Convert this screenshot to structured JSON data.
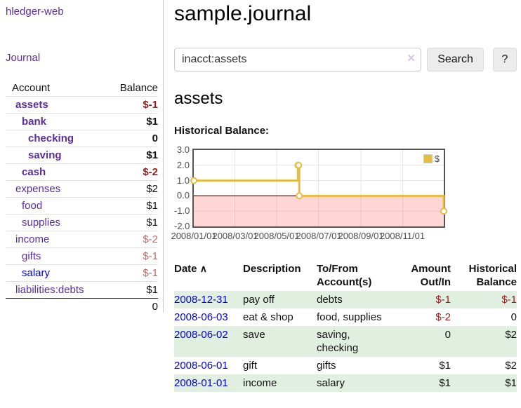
{
  "app": {
    "brand": "hledger-web"
  },
  "sidebar": {
    "journal_link": "Journal",
    "account_header": "Account",
    "balance_header": "Balance",
    "accounts": [
      {
        "name": "assets",
        "depth": 1,
        "bold": true,
        "balance": "$-1",
        "balance_style": "neg-strong",
        "link_color": "purple"
      },
      {
        "name": "bank",
        "depth": 2,
        "bold": true,
        "balance": "$1",
        "balance_style": "pos",
        "link_color": "purple"
      },
      {
        "name": "checking",
        "depth": 3,
        "bold": true,
        "balance": "0",
        "balance_style": "pos",
        "link_color": "purple"
      },
      {
        "name": "saving",
        "depth": 3,
        "bold": true,
        "balance": "$1",
        "balance_style": "pos",
        "link_color": "purple"
      },
      {
        "name": "cash",
        "depth": 2,
        "bold": true,
        "balance": "$-2",
        "balance_style": "neg-strong",
        "link_color": "purple"
      },
      {
        "name": "expenses",
        "depth": 1,
        "bold": false,
        "balance": "$2",
        "balance_style": "pos",
        "link_color": "purple"
      },
      {
        "name": "food",
        "depth": 2,
        "bold": false,
        "balance": "$1",
        "balance_style": "pos",
        "link_color": "purple"
      },
      {
        "name": "supplies",
        "depth": 2,
        "bold": false,
        "balance": "$1",
        "balance_style": "pos",
        "link_color": "purple"
      },
      {
        "name": "income",
        "depth": 1,
        "bold": false,
        "balance": "$-2",
        "balance_style": "neg-soft",
        "link_color": "purple"
      },
      {
        "name": "gifts",
        "depth": 2,
        "bold": false,
        "balance": "$-1",
        "balance_style": "neg-soft",
        "link_color": "purple"
      },
      {
        "name": "salary",
        "depth": 2,
        "bold": false,
        "balance": "$-1",
        "balance_style": "neg-soft",
        "link_color": "blue"
      },
      {
        "name": "liabilities:debts",
        "depth": 1,
        "bold": false,
        "balance": "$1",
        "balance_style": "pos",
        "link_color": "purple"
      }
    ],
    "total": "0"
  },
  "header": {
    "title": "sample.journal"
  },
  "search": {
    "value": "inacct:assets",
    "clear_icon": "×",
    "button": "Search",
    "help_button": "?"
  },
  "account_page": {
    "heading": "assets",
    "chart_label": "Historical Balance:"
  },
  "chart_data": {
    "type": "line",
    "title": "Historical Balance",
    "style": "step-after",
    "series": [
      {
        "name": "$",
        "points": [
          {
            "date": "2008-01-01",
            "value": 1
          },
          {
            "date": "2008-06-01",
            "value": 2
          },
          {
            "date": "2008-06-02",
            "value": 2
          },
          {
            "date": "2008-06-03",
            "value": 0
          },
          {
            "date": "2008-12-31",
            "value": -1
          }
        ]
      }
    ],
    "x_ticks": [
      "2008/01/01",
      "2008/03/01",
      "2008/05/01",
      "2008/07/01",
      "2008/09/01",
      "2008/11/01"
    ],
    "y_ticks": [
      "3.0",
      "2.0",
      "1.0",
      "0.0",
      "-1.0",
      "-2.0"
    ],
    "ylim": [
      -2,
      3
    ],
    "x_range_days": 365,
    "grid": true,
    "legend": {
      "label": "$",
      "position": "top-right"
    },
    "colors": {
      "line": "#e6bd3e",
      "marker_fill": "#ffffff",
      "negative_region": "rgba(255,130,130,0.33)",
      "zero_line": "#8b0000",
      "grid": "#e3e3e3",
      "border": "#555555"
    }
  },
  "register": {
    "headers": [
      "Date",
      "Description",
      "To/From Account(s)",
      "Amount Out/In",
      "Historical Balance"
    ],
    "sort_icon": "∧",
    "rows": [
      {
        "date": "2008-12-31",
        "description": "pay off",
        "accounts": "debts",
        "amount": "$-1",
        "balance": "$-1"
      },
      {
        "date": "2008-06-03",
        "description": "eat & shop",
        "accounts": "food, supplies",
        "amount": "$-2",
        "balance": "0"
      },
      {
        "date": "2008-06-02",
        "description": "save",
        "accounts": "saving, checking",
        "amount": "0",
        "balance": "$2"
      },
      {
        "date": "2008-06-01",
        "description": "gift",
        "accounts": "gifts",
        "amount": "$1",
        "balance": "$2"
      },
      {
        "date": "2008-01-01",
        "description": "income",
        "accounts": "salary",
        "amount": "$1",
        "balance": "$1"
      }
    ]
  },
  "colors": {
    "link_purple": "#5c2d9e",
    "link_blue": "#0000e0",
    "negative_strong": "#9e1a1a",
    "negative_soft": "#bf6868",
    "row_stripe_green": "#e1efe1"
  }
}
